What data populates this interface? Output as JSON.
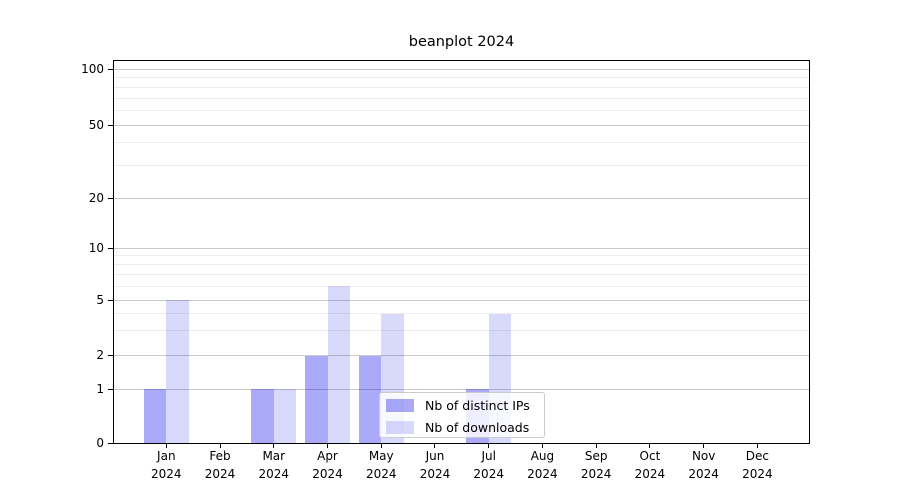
{
  "chart_data": {
    "type": "bar",
    "title": "beanplot 2024",
    "categories": [
      {
        "month": "Jan",
        "year": "2024"
      },
      {
        "month": "Feb",
        "year": "2024"
      },
      {
        "month": "Mar",
        "year": "2024"
      },
      {
        "month": "Apr",
        "year": "2024"
      },
      {
        "month": "May",
        "year": "2024"
      },
      {
        "month": "Jun",
        "year": "2024"
      },
      {
        "month": "Jul",
        "year": "2024"
      },
      {
        "month": "Aug",
        "year": "2024"
      },
      {
        "month": "Sep",
        "year": "2024"
      },
      {
        "month": "Oct",
        "year": "2024"
      },
      {
        "month": "Nov",
        "year": "2024"
      },
      {
        "month": "Dec",
        "year": "2024"
      }
    ],
    "series": [
      {
        "name": "Nb of distinct IPs",
        "color": "#a8a8f2",
        "fill": "rgba(10,10,235,0.345)",
        "values": [
          1,
          0,
          1,
          2,
          2,
          0,
          1,
          0,
          0,
          0,
          0,
          0
        ]
      },
      {
        "name": "Nb of downloads",
        "color": "#d9d9fa",
        "fill": "rgba(10,10,235,0.155)",
        "values": [
          5,
          0,
          1,
          6,
          4,
          0,
          4,
          0,
          0,
          0,
          0,
          0
        ]
      }
    ],
    "y_axis": {
      "scale": "symlog-like",
      "range": [
        0,
        100
      ],
      "ticks": [
        0,
        1,
        2,
        5,
        10,
        20,
        50,
        100
      ],
      "minor_gridline_values": [
        3,
        4,
        6,
        7,
        8,
        9,
        30,
        40,
        60,
        70,
        80,
        90
      ]
    },
    "legend": {
      "position": "bottom-center"
    },
    "grid": {
      "major_color": "#c9c9c9",
      "minor_color": "#ececec"
    },
    "text_color": "#000000"
  }
}
